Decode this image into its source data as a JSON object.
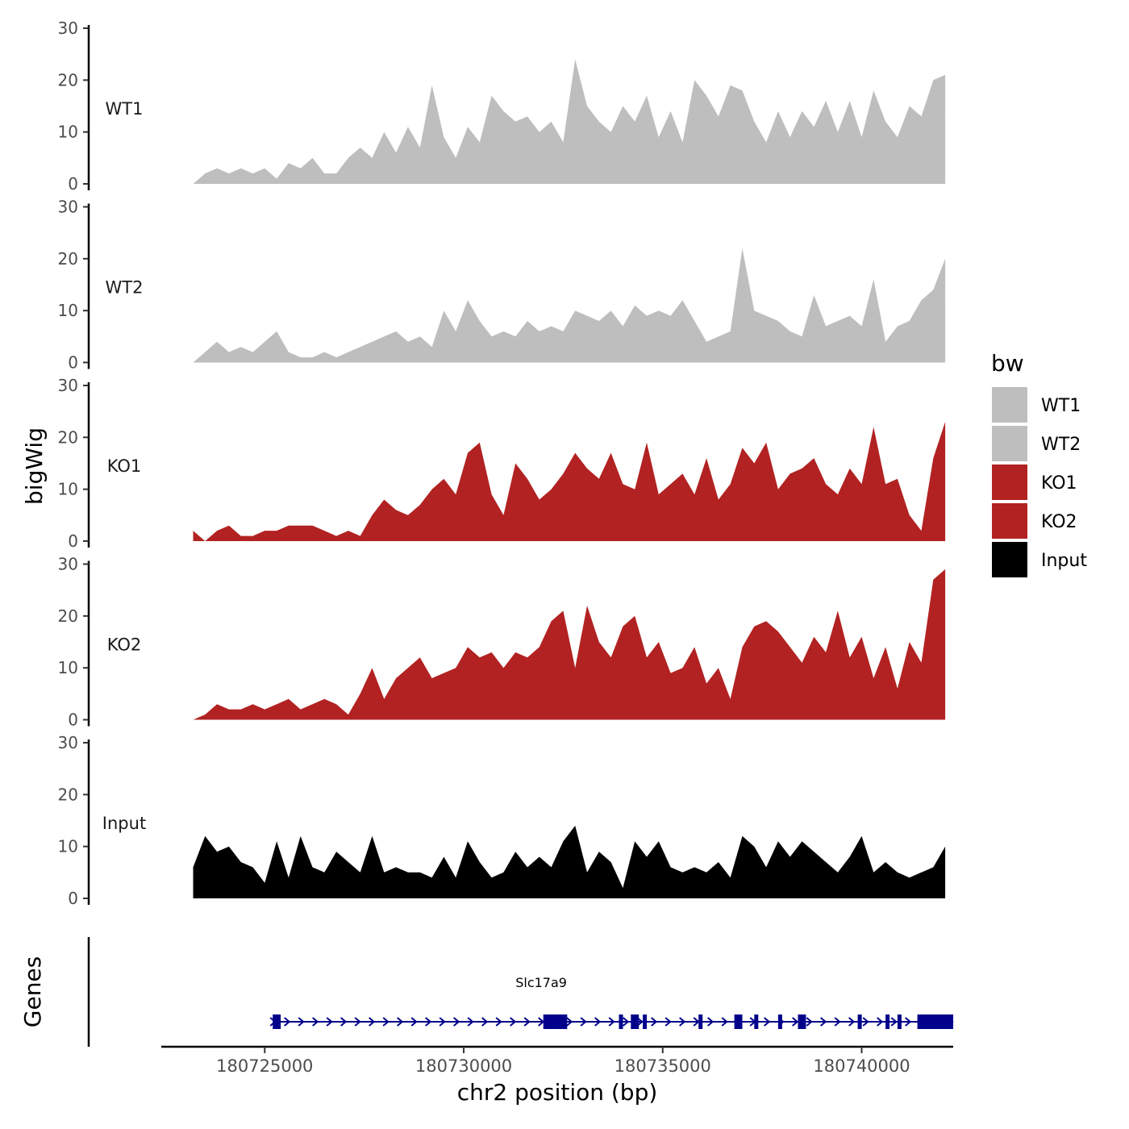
{
  "chart_data": {
    "type": "area",
    "title": "",
    "xlabel": "chr2 position (bp)",
    "ylabel": "bigWig",
    "genes_label": "Genes",
    "x_range": [
      180722400,
      180742300
    ],
    "x_ticks": [
      180725000,
      180730000,
      180735000,
      180740000
    ],
    "x_tick_labels": [
      "180725000",
      "180730000",
      "180735000",
      "180740000"
    ],
    "ylim": [
      0,
      30
    ],
    "y_ticks": [
      0,
      10,
      20,
      30
    ],
    "y_tick_labels": [
      "0",
      "10",
      "20",
      "30"
    ],
    "legend": {
      "title": "bw",
      "position": "right",
      "entries": [
        {
          "label": "WT1",
          "color": "#bebebe"
        },
        {
          "label": "WT2",
          "color": "#bebebe"
        },
        {
          "label": "KO1",
          "color": "#b22222"
        },
        {
          "label": "KO2",
          "color": "#b22222"
        },
        {
          "label": "Input",
          "color": "#000000"
        }
      ]
    },
    "series": [
      {
        "name": "WT1",
        "color": "#bebebe",
        "x": [
          180723200,
          180723500,
          180723800,
          180724100,
          180724400,
          180724700,
          180725000,
          180725300,
          180725600,
          180725900,
          180726200,
          180726500,
          180726800,
          180727100,
          180727400,
          180727700,
          180728000,
          180728300,
          180728600,
          180728900,
          180729200,
          180729500,
          180729800,
          180730100,
          180730400,
          180730700,
          180731000,
          180731300,
          180731600,
          180731900,
          180732200,
          180732500,
          180732800,
          180733100,
          180733400,
          180733700,
          180734000,
          180734300,
          180734600,
          180734900,
          180735200,
          180735500,
          180735800,
          180736100,
          180736400,
          180736700,
          180737000,
          180737300,
          180737600,
          180737900,
          180738200,
          180738500,
          180738800,
          180739100,
          180739400,
          180739700,
          180740000,
          180740300,
          180740600,
          180740900,
          180741200,
          180741500,
          180741800,
          180742100
        ],
        "values": [
          0,
          2,
          3,
          2,
          3,
          2,
          3,
          1,
          4,
          3,
          5,
          2,
          2,
          5,
          7,
          5,
          10,
          6,
          11,
          7,
          19,
          9,
          5,
          11,
          8,
          17,
          14,
          12,
          13,
          10,
          12,
          8,
          24,
          15,
          12,
          10,
          15,
          12,
          17,
          9,
          14,
          8,
          20,
          17,
          13,
          19,
          18,
          12,
          8,
          14,
          9,
          14,
          11,
          16,
          10,
          16,
          9,
          18,
          12,
          9,
          15,
          13,
          20,
          21
        ]
      },
      {
        "name": "WT2",
        "color": "#bebebe",
        "x": [
          180723200,
          180723500,
          180723800,
          180724100,
          180724400,
          180724700,
          180725000,
          180725300,
          180725600,
          180725900,
          180726200,
          180726500,
          180726800,
          180727100,
          180727400,
          180727700,
          180728000,
          180728300,
          180728600,
          180728900,
          180729200,
          180729500,
          180729800,
          180730100,
          180730400,
          180730700,
          180731000,
          180731300,
          180731600,
          180731900,
          180732200,
          180732500,
          180732800,
          180733100,
          180733400,
          180733700,
          180734000,
          180734300,
          180734600,
          180734900,
          180735200,
          180735500,
          180735800,
          180736100,
          180736400,
          180736700,
          180737000,
          180737300,
          180737600,
          180737900,
          180738200,
          180738500,
          180738800,
          180739100,
          180739400,
          180739700,
          180740000,
          180740300,
          180740600,
          180740900,
          180741200,
          180741500,
          180741800,
          180742100
        ],
        "values": [
          0,
          2,
          4,
          2,
          3,
          2,
          4,
          6,
          2,
          1,
          1,
          2,
          1,
          2,
          3,
          4,
          5,
          6,
          4,
          5,
          3,
          10,
          6,
          12,
          8,
          5,
          6,
          5,
          8,
          6,
          7,
          6,
          10,
          9,
          8,
          10,
          7,
          11,
          9,
          10,
          9,
          12,
          8,
          4,
          5,
          6,
          22,
          10,
          9,
          8,
          6,
          5,
          13,
          7,
          8,
          9,
          7,
          16,
          4,
          7,
          8,
          12,
          14,
          20
        ]
      },
      {
        "name": "KO1",
        "color": "#b22222",
        "x": [
          180723200,
          180723500,
          180723800,
          180724100,
          180724400,
          180724700,
          180725000,
          180725300,
          180725600,
          180725900,
          180726200,
          180726500,
          180726800,
          180727100,
          180727400,
          180727700,
          180728000,
          180728300,
          180728600,
          180728900,
          180729200,
          180729500,
          180729800,
          180730100,
          180730400,
          180730700,
          180731000,
          180731300,
          180731600,
          180731900,
          180732200,
          180732500,
          180732800,
          180733100,
          180733400,
          180733700,
          180734000,
          180734300,
          180734600,
          180734900,
          180735200,
          180735500,
          180735800,
          180736100,
          180736400,
          180736700,
          180737000,
          180737300,
          180737600,
          180737900,
          180738200,
          180738500,
          180738800,
          180739100,
          180739400,
          180739700,
          180740000,
          180740300,
          180740600,
          180740900,
          180741200,
          180741500,
          180741800,
          180742100
        ],
        "values": [
          2,
          0,
          2,
          3,
          1,
          1,
          2,
          2,
          3,
          3,
          3,
          2,
          1,
          2,
          1,
          5,
          8,
          6,
          5,
          7,
          10,
          12,
          9,
          17,
          19,
          9,
          5,
          15,
          12,
          8,
          10,
          13,
          17,
          14,
          12,
          17,
          11,
          10,
          19,
          9,
          11,
          13,
          9,
          16,
          8,
          11,
          18,
          15,
          19,
          10,
          13,
          14,
          16,
          11,
          9,
          14,
          11,
          22,
          11,
          12,
          5,
          2,
          16,
          23
        ]
      },
      {
        "name": "KO2",
        "color": "#b22222",
        "x": [
          180723200,
          180723500,
          180723800,
          180724100,
          180724400,
          180724700,
          180725000,
          180725300,
          180725600,
          180725900,
          180726200,
          180726500,
          180726800,
          180727100,
          180727400,
          180727700,
          180728000,
          180728300,
          180728600,
          180728900,
          180729200,
          180729500,
          180729800,
          180730100,
          180730400,
          180730700,
          180731000,
          180731300,
          180731600,
          180731900,
          180732200,
          180732500,
          180732800,
          180733100,
          180733400,
          180733700,
          180734000,
          180734300,
          180734600,
          180734900,
          180735200,
          180735500,
          180735800,
          180736100,
          180736400,
          180736700,
          180737000,
          180737300,
          180737600,
          180737900,
          180738200,
          180738500,
          180738800,
          180739100,
          180739400,
          180739700,
          180740000,
          180740300,
          180740600,
          180740900,
          180741200,
          180741500,
          180741800,
          180742100
        ],
        "values": [
          0,
          1,
          3,
          2,
          2,
          3,
          2,
          3,
          4,
          2,
          3,
          4,
          3,
          1,
          5,
          10,
          4,
          8,
          10,
          12,
          8,
          9,
          10,
          14,
          12,
          13,
          10,
          13,
          12,
          14,
          19,
          21,
          10,
          22,
          15,
          12,
          18,
          20,
          12,
          15,
          9,
          10,
          14,
          7,
          10,
          4,
          14,
          18,
          19,
          17,
          14,
          11,
          16,
          13,
          21,
          12,
          16,
          8,
          14,
          6,
          15,
          11,
          27,
          29
        ]
      },
      {
        "name": "Input",
        "color": "#000000",
        "x": [
          180723200,
          180723500,
          180723800,
          180724100,
          180724400,
          180724700,
          180725000,
          180725300,
          180725600,
          180725900,
          180726200,
          180726500,
          180726800,
          180727100,
          180727400,
          180727700,
          180728000,
          180728300,
          180728600,
          180728900,
          180729200,
          180729500,
          180729800,
          180730100,
          180730400,
          180730700,
          180731000,
          180731300,
          180731600,
          180731900,
          180732200,
          180732500,
          180732800,
          180733100,
          180733400,
          180733700,
          180734000,
          180734300,
          180734600,
          180734900,
          180735200,
          180735500,
          180735800,
          180736100,
          180736400,
          180736700,
          180737000,
          180737300,
          180737600,
          180737900,
          180738200,
          180738500,
          180738800,
          180739100,
          180739400,
          180739700,
          180740000,
          180740300,
          180740600,
          180740900,
          180741200,
          180741500,
          180741800,
          180742100
        ],
        "values": [
          6,
          12,
          9,
          10,
          7,
          6,
          3,
          11,
          4,
          12,
          6,
          5,
          9,
          7,
          5,
          12,
          5,
          6,
          5,
          5,
          4,
          8,
          4,
          11,
          7,
          4,
          5,
          9,
          6,
          8,
          6,
          11,
          14,
          5,
          9,
          7,
          2,
          11,
          8,
          11,
          6,
          5,
          6,
          5,
          7,
          4,
          12,
          10,
          6,
          11,
          8,
          11,
          9,
          7,
          5,
          8,
          12,
          5,
          7,
          5,
          4,
          5,
          6,
          10
        ]
      }
    ],
    "gene": {
      "name": "Slc17a9",
      "strand": "+",
      "start": 180725200,
      "end": 180742300,
      "exons": [
        [
          180725200,
          180725400
        ],
        [
          180732000,
          180732600
        ],
        [
          180733900,
          180734000
        ],
        [
          180734200,
          180734400
        ],
        [
          180734500,
          180734600
        ],
        [
          180735900,
          180736000
        ],
        [
          180736800,
          180737000
        ],
        [
          180737300,
          180737400
        ],
        [
          180737900,
          180738000
        ],
        [
          180738400,
          180738600
        ],
        [
          180739900,
          180740000
        ],
        [
          180740600,
          180740700
        ],
        [
          180740900,
          180741000
        ],
        [
          180741400,
          180742300
        ]
      ]
    }
  }
}
